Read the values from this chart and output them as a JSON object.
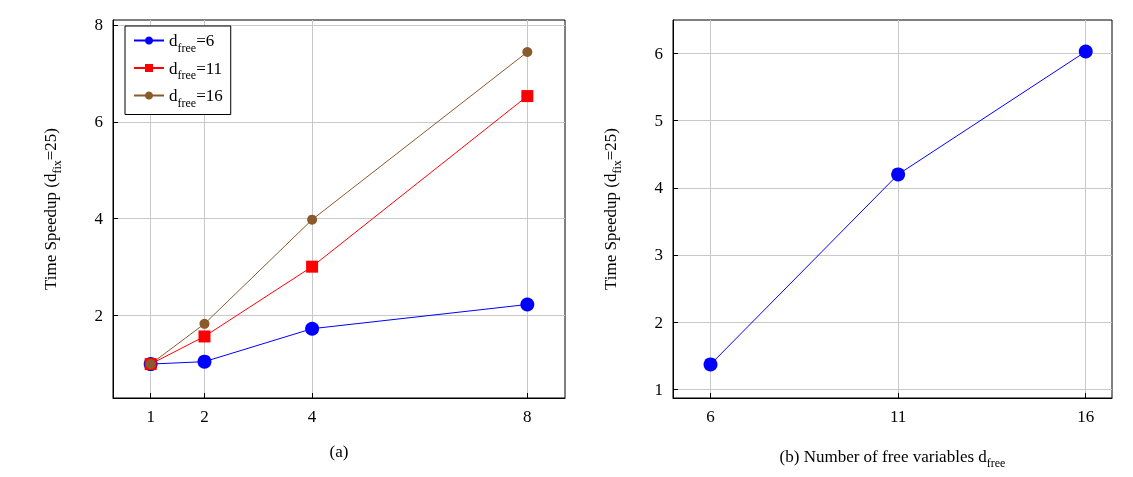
{
  "chart_data": [
    {
      "type": "line",
      "xlabel": "(a)",
      "ylabel": "Time Speedup (d$_{fix}$=25)",
      "x": [
        1,
        2,
        4,
        8
      ],
      "series": [
        {
          "name": "d$_{free}$=6",
          "color": "#0000ff",
          "marker": "circle",
          "values": [
            1,
            1.05,
            1.73,
            2.23
          ]
        },
        {
          "name": "d$_{free}$=11",
          "color": "#ff0000",
          "marker": "square",
          "values": [
            1,
            1.57,
            3.01,
            6.53
          ]
        },
        {
          "name": "d$_{free}$=16",
          "color": "#8b5a2b",
          "marker": "circle",
          "values": [
            1,
            1.83,
            3.98,
            7.44
          ]
        }
      ],
      "xlim": [
        0.3,
        8.7
      ],
      "xticks": [
        1,
        2,
        4,
        8
      ],
      "ylim": [
        0.3,
        8.1
      ],
      "yticks": [
        2,
        4,
        6,
        8
      ],
      "grid": true,
      "legend": "top left"
    },
    {
      "type": "line",
      "xlabel": "(b) Number of free variables d$_{free}$",
      "ylabel": "Time Speedup (d$_{fix}$=25)",
      "x": [
        6,
        11,
        16
      ],
      "series": [
        {
          "color": "#0000ff",
          "marker": "circle",
          "values": [
            1.37,
            4.2,
            6.03
          ]
        }
      ],
      "xlim": [
        5.0,
        16.7
      ],
      "xticks": [
        6,
        11,
        16
      ],
      "ylim": [
        0.87,
        6.5
      ],
      "yticks": [
        1,
        2,
        3,
        4,
        5,
        6
      ],
      "grid": true
    }
  ]
}
